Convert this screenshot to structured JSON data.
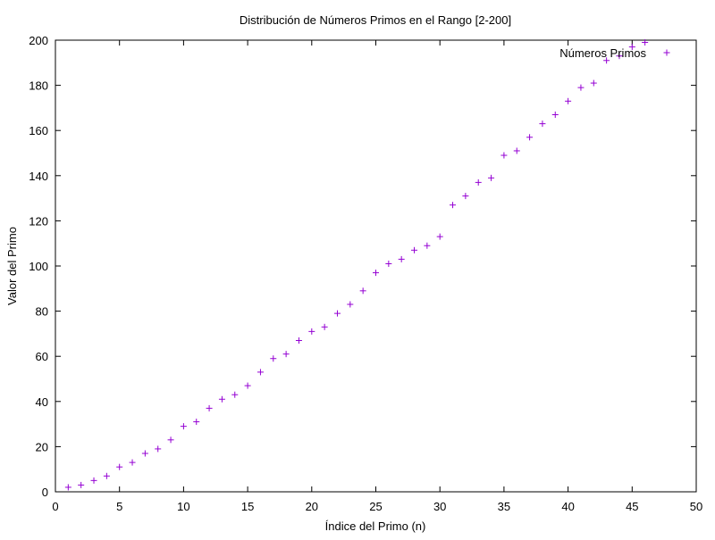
{
  "chart_data": {
    "type": "scatter",
    "title": "Distribución de Números Primos en el Rango [2-200]",
    "xlabel": "Índice del Primo (n)",
    "ylabel": "Valor del Primo",
    "xlim": [
      0,
      50
    ],
    "ylim": [
      0,
      200
    ],
    "x_ticks": [
      0,
      5,
      10,
      15,
      20,
      25,
      30,
      35,
      40,
      45,
      50
    ],
    "y_ticks": [
      0,
      20,
      40,
      60,
      80,
      100,
      120,
      140,
      160,
      180,
      200
    ],
    "grid": false,
    "legend_position": "top-right",
    "marker": "+",
    "series": [
      {
        "name": "Números Primos",
        "color": "#9400d3",
        "x": [
          1,
          2,
          3,
          4,
          5,
          6,
          7,
          8,
          9,
          10,
          11,
          12,
          13,
          14,
          15,
          16,
          17,
          18,
          19,
          20,
          21,
          22,
          23,
          24,
          25,
          26,
          27,
          28,
          29,
          30,
          31,
          32,
          33,
          34,
          35,
          36,
          37,
          38,
          39,
          40,
          41,
          42,
          43,
          44,
          45,
          46
        ],
        "y": [
          2,
          3,
          5,
          7,
          11,
          13,
          17,
          19,
          23,
          29,
          31,
          37,
          41,
          43,
          47,
          53,
          59,
          61,
          67,
          71,
          73,
          79,
          83,
          89,
          97,
          101,
          103,
          107,
          109,
          113,
          127,
          131,
          137,
          139,
          149,
          151,
          157,
          163,
          167,
          173,
          179,
          181,
          191,
          193,
          197,
          199
        ]
      }
    ]
  }
}
